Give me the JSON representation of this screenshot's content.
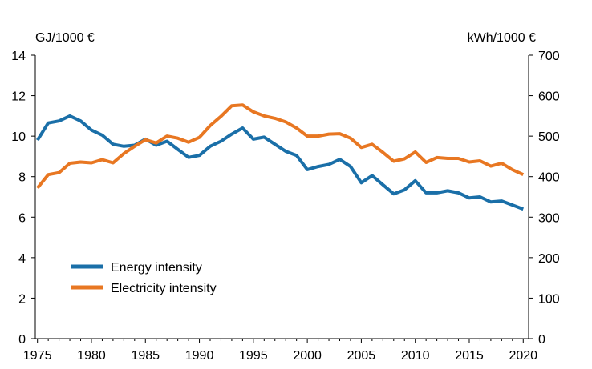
{
  "chart_data": {
    "type": "line",
    "title": "",
    "ylabel_left": "GJ/1000 €",
    "ylabel_right": "kWh/1000 €",
    "x": [
      1975,
      1976,
      1977,
      1978,
      1979,
      1980,
      1981,
      1982,
      1983,
      1984,
      1985,
      1986,
      1987,
      1988,
      1989,
      1990,
      1991,
      1992,
      1993,
      1994,
      1995,
      1996,
      1997,
      1998,
      1999,
      2000,
      2001,
      2002,
      2003,
      2004,
      2005,
      2006,
      2007,
      2008,
      2009,
      2010,
      2011,
      2012,
      2013,
      2014,
      2015,
      2016,
      2017,
      2018,
      2019,
      2020
    ],
    "xticks": [
      "1975",
      "1980",
      "1985",
      "1990",
      "1995",
      "2000",
      "2005",
      "2010",
      "2015",
      "2020"
    ],
    "xlim": [
      1974.8,
      2020.5
    ],
    "ylim_left": [
      0,
      14
    ],
    "ylim_right": [
      0,
      700
    ],
    "yticks_left": [
      "0",
      "2",
      "4",
      "6",
      "8",
      "10",
      "12",
      "14"
    ],
    "yticks_right": [
      "0",
      "100",
      "200",
      "300",
      "400",
      "500",
      "600",
      "700"
    ],
    "series": [
      {
        "name": "Energy intensity",
        "axis": "left",
        "color": "#1a6fa8",
        "values": [
          9.8,
          10.65,
          10.75,
          11.0,
          10.75,
          10.3,
          10.05,
          9.6,
          9.5,
          9.55,
          9.85,
          9.55,
          9.75,
          9.35,
          8.95,
          9.05,
          9.5,
          9.75,
          10.1,
          10.4,
          9.85,
          9.95,
          9.6,
          9.25,
          9.05,
          8.35,
          8.5,
          8.6,
          8.85,
          8.5,
          7.7,
          8.05,
          7.6,
          7.15,
          7.35,
          7.8,
          7.2,
          7.2,
          7.3,
          7.2,
          6.95,
          7.0,
          6.75,
          6.8,
          6.6,
          6.4
        ]
      },
      {
        "name": "Electricity intensity",
        "axis": "right",
        "color": "#e87722",
        "values": [
          372,
          405,
          410,
          433,
          436,
          434,
          442,
          434,
          457,
          475,
          491,
          483,
          500,
          495,
          485,
          497,
          526,
          549,
          575,
          577,
          560,
          550,
          544,
          535,
          520,
          500,
          500,
          505,
          506,
          495,
          472,
          480,
          460,
          438,
          444,
          461,
          435,
          447,
          445,
          445,
          436,
          439,
          426,
          433,
          417,
          405
        ]
      }
    ],
    "legend": {
      "position": "lower-left"
    }
  }
}
